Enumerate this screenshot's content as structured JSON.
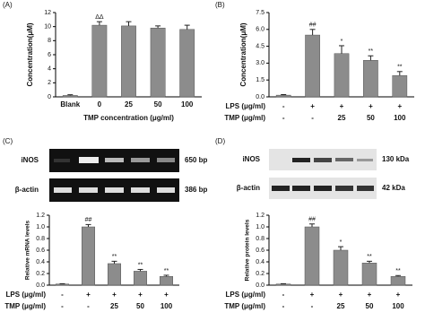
{
  "chart_data": [
    {
      "type": "bar",
      "panel": "(A)",
      "ylabel": "Concentration(μM)",
      "xlabel": "TMP concentration (μg/ml)",
      "categories": [
        "Blank",
        "0",
        "25",
        "50",
        "100"
      ],
      "values": [
        0.2,
        10.2,
        10.1,
        9.8,
        9.6
      ],
      "errors": [
        0.1,
        0.5,
        0.6,
        0.3,
        0.6
      ],
      "annotations": [
        null,
        "ΔΔ",
        null,
        null,
        null
      ],
      "color": "#8c8c8c",
      "ylim": [
        0,
        12
      ],
      "yticks": [
        0,
        2,
        4,
        6,
        8,
        10,
        12
      ]
    },
    {
      "type": "bar",
      "panel": "(B)",
      "ylabel": "Concentration(μM)",
      "rows": [
        {
          "label": "LPS (μg/ml)",
          "values": [
            "-",
            "+",
            "+",
            "+",
            "+"
          ]
        },
        {
          "label": "TMP (μg/ml)",
          "values": [
            "-",
            "-",
            "25",
            "50",
            "100"
          ]
        }
      ],
      "values": [
        0.15,
        5.5,
        3.85,
        3.25,
        1.9
      ],
      "errors": [
        0.05,
        0.5,
        0.7,
        0.4,
        0.35
      ],
      "annotations": [
        null,
        "##",
        "*",
        "**",
        "**"
      ],
      "color": "#8c8c8c",
      "ylim": [
        0,
        7.5
      ],
      "yticks": [
        {
          "value": 0,
          "label": "0.0"
        },
        1.5,
        {
          "value": 3,
          "label": "3.0"
        },
        4.5,
        {
          "value": 6,
          "label": "6.0"
        },
        7.5
      ]
    },
    {
      "type": "bar",
      "panel": "(C)",
      "ylabel": "Relative mRNA levels",
      "blot_labels": [
        {
          "name": "iNOS",
          "size": "650 bp"
        },
        {
          "name": "β-actin",
          "size": "386 bp"
        }
      ],
      "rows": [
        {
          "label": "LPS (μg/ml)",
          "values": [
            "-",
            "+",
            "+",
            "+",
            "+"
          ]
        },
        {
          "label": "TMP (μg/ml)",
          "values": [
            "-",
            "-",
            "25",
            "50",
            "100"
          ]
        }
      ],
      "values": [
        0.02,
        1.0,
        0.37,
        0.24,
        0.15
      ],
      "errors": [
        0.005,
        0.04,
        0.04,
        0.03,
        0.02
      ],
      "annotations": [
        null,
        "##",
        "**",
        "**",
        "**"
      ],
      "color": "#8c8c8c",
      "ylim": [
        0,
        1.2
      ],
      "yticks": [
        {
          "value": 0,
          "label": "0.0"
        },
        0.2,
        0.4,
        0.6,
        0.8,
        {
          "value": 1,
          "label": "1.0"
        },
        1.2
      ]
    },
    {
      "type": "bar",
      "panel": "(D)",
      "ylabel": "Relative protein levels",
      "blot_labels": [
        {
          "name": "iNOS",
          "size": "130 kDa"
        },
        {
          "name": "β-actin",
          "size": "42 kDa"
        }
      ],
      "rows": [
        {
          "label": "LPS (μg/ml)",
          "values": [
            "-",
            "+",
            "+",
            "+",
            "+"
          ]
        },
        {
          "label": "TMP (μg/ml)",
          "values": [
            "-",
            "-",
            "25",
            "50",
            "100"
          ]
        }
      ],
      "values": [
        0.02,
        1.0,
        0.6,
        0.38,
        0.15
      ],
      "errors": [
        0.005,
        0.05,
        0.06,
        0.03,
        0.015
      ],
      "annotations": [
        null,
        "##",
        "*",
        "**",
        "**"
      ],
      "color": "#8c8c8c",
      "ylim": [
        0,
        1.2
      ],
      "yticks": [
        {
          "value": 0,
          "label": "0.0"
        },
        0.2,
        0.4,
        0.6,
        0.8,
        {
          "value": 1,
          "label": "1.0"
        },
        1.2
      ]
    }
  ]
}
